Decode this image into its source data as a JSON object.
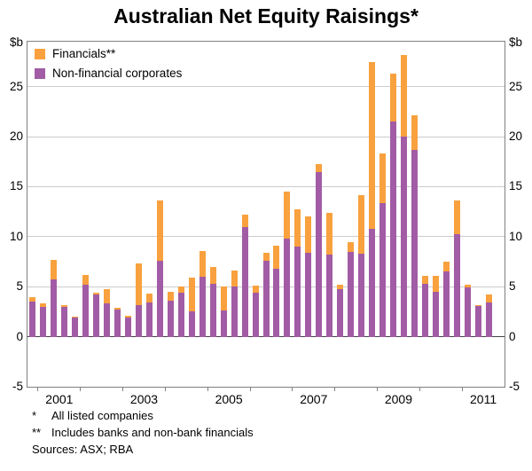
{
  "title": "Australian Net Equity Raisings*",
  "unit_left": "$b",
  "unit_right": "$b",
  "legend": [
    {
      "label": "Financials**",
      "color": "#F8A13E"
    },
    {
      "label": "Non-financial corporates",
      "color": "#A15CA5"
    }
  ],
  "footnotes": [
    {
      "marker": "*",
      "text": "All listed companies"
    },
    {
      "marker": "**",
      "text": "Includes banks and non-bank financials"
    }
  ],
  "sources": "Sources: ASX; RBA",
  "chart_data": {
    "type": "bar",
    "stacked": true,
    "title": "Australian Net Equity Raisings*",
    "ylabel": "$b",
    "ylim": [
      -5,
      29.5
    ],
    "yticks": [
      -5,
      0,
      5,
      10,
      15,
      20,
      25
    ],
    "grid": true,
    "legend_position": "top-left",
    "n_slots": 45,
    "xtick_labels": [
      "2001",
      "2003",
      "2005",
      "2007",
      "2009",
      "2011"
    ],
    "categories": [
      "2000 Q4",
      "2001 Q1",
      "2001 Q2",
      "2001 Q3",
      "2001 Q4",
      "2002 Q1",
      "2002 Q2",
      "2002 Q3",
      "2002 Q4",
      "2003 Q1",
      "2003 Q2",
      "2003 Q3",
      "2003 Q4",
      "2004 Q1",
      "2004 Q2",
      "2004 Q3",
      "2004 Q4",
      "2005 Q1",
      "2005 Q2",
      "2005 Q3",
      "2005 Q4",
      "2006 Q1",
      "2006 Q2",
      "2006 Q3",
      "2006 Q4",
      "2007 Q1",
      "2007 Q2",
      "2007 Q3",
      "2007 Q4",
      "2008 Q1",
      "2008 Q2",
      "2008 Q3",
      "2008 Q4",
      "2009 Q1",
      "2009 Q2",
      "2009 Q3",
      "2009 Q4",
      "2010 Q1",
      "2010 Q2",
      "2010 Q3",
      "2010 Q4",
      "2011 Q1",
      "2011 Q2",
      "2011 Q3"
    ],
    "series": [
      {
        "name": "Non-financial corporates",
        "color": "#A15CA5",
        "values": [
          3.5,
          3.0,
          5.7,
          3.0,
          1.9,
          5.2,
          4.2,
          3.3,
          2.7,
          1.9,
          3.2,
          3.4,
          7.6,
          3.6,
          4.4,
          2.5,
          6.0,
          5.3,
          2.6,
          5.0,
          11.0,
          4.4,
          7.6,
          6.8,
          9.8,
          9.0,
          8.4,
          16.5,
          8.2,
          4.8,
          8.5,
          8.3,
          10.8,
          13.4,
          21.5,
          20.0,
          18.7,
          5.3,
          4.5,
          6.5,
          10.3,
          4.9,
          3.1,
          3.4
        ]
      },
      {
        "name": "Financials**",
        "color": "#F8A13E",
        "values": [
          0.5,
          0.3,
          2.0,
          0.2,
          0.1,
          1.0,
          0.2,
          1.5,
          0.2,
          0.2,
          4.1,
          0.9,
          6.0,
          0.9,
          0.6,
          3.4,
          2.6,
          1.7,
          2.4,
          1.6,
          1.2,
          0.7,
          0.8,
          2.3,
          4.7,
          3.7,
          3.6,
          0.8,
          4.2,
          0.4,
          1.0,
          5.9,
          16.7,
          4.9,
          4.8,
          8.2,
          3.4,
          0.8,
          1.6,
          1.0,
          3.3,
          0.3,
          0.1,
          0.8
        ]
      }
    ]
  }
}
